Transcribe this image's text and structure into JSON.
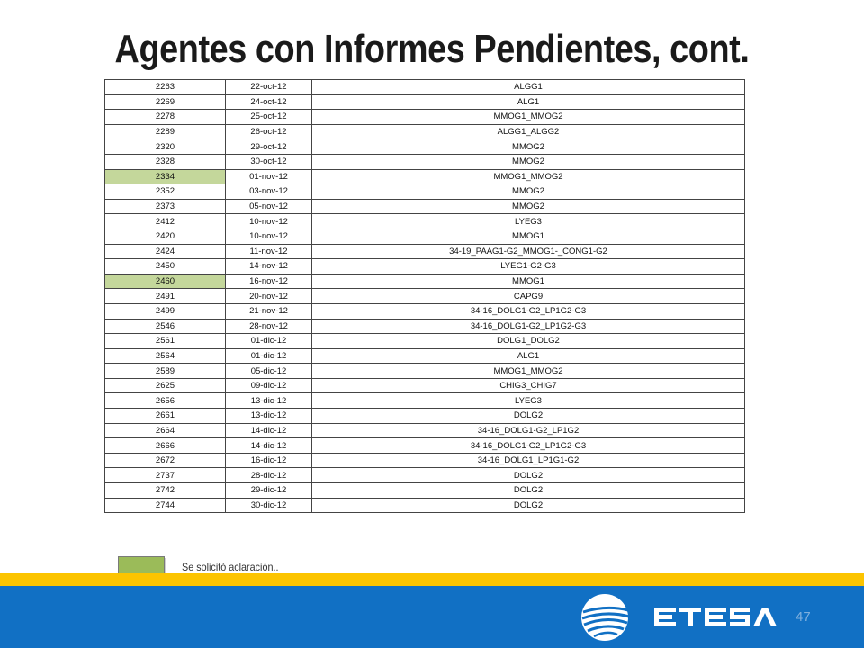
{
  "title": "Agentes con Informes Pendientes, cont.",
  "rows": [
    {
      "id": "2263",
      "date": "22-oct-12",
      "code": "ALGG1",
      "highlight": false
    },
    {
      "id": "2269",
      "date": "24-oct-12",
      "code": "ALG1",
      "highlight": false
    },
    {
      "id": "2278",
      "date": "25-oct-12",
      "code": "MMOG1_MMOG2",
      "highlight": false
    },
    {
      "id": "2289",
      "date": "26-oct-12",
      "code": "ALGG1_ALGG2",
      "highlight": false
    },
    {
      "id": "2320",
      "date": "29-oct-12",
      "code": "MMOG2",
      "highlight": false
    },
    {
      "id": "2328",
      "date": "30-oct-12",
      "code": "MMOG2",
      "highlight": false
    },
    {
      "id": "2334",
      "date": "01-nov-12",
      "code": "MMOG1_MMOG2",
      "highlight": true
    },
    {
      "id": "2352",
      "date": "03-nov-12",
      "code": "MMOG2",
      "highlight": false
    },
    {
      "id": "2373",
      "date": "05-nov-12",
      "code": "MMOG2",
      "highlight": false
    },
    {
      "id": "2412",
      "date": "10-nov-12",
      "code": "LYEG3",
      "highlight": false
    },
    {
      "id": "2420",
      "date": "10-nov-12",
      "code": "MMOG1",
      "highlight": false
    },
    {
      "id": "2424",
      "date": "11-nov-12",
      "code": "34-19_PAAG1-G2_MMOG1-_CONG1-G2",
      "highlight": false
    },
    {
      "id": "2450",
      "date": "14-nov-12",
      "code": "LYEG1-G2-G3",
      "highlight": false
    },
    {
      "id": "2460",
      "date": "16-nov-12",
      "code": "MMOG1",
      "highlight": true
    },
    {
      "id": "2491",
      "date": "20-nov-12",
      "code": "CAPG9",
      "highlight": false
    },
    {
      "id": "2499",
      "date": "21-nov-12",
      "code": "34-16_DOLG1-G2_LP1G2-G3",
      "highlight": false
    },
    {
      "id": "2546",
      "date": "28-nov-12",
      "code": "34-16_DOLG1-G2_LP1G2-G3",
      "highlight": false
    },
    {
      "id": "2561",
      "date": "01-dic-12",
      "code": "DOLG1_DOLG2",
      "highlight": false
    },
    {
      "id": "2564",
      "date": "01-dic-12",
      "code": "ALG1",
      "highlight": false
    },
    {
      "id": "2589",
      "date": "05-dic-12",
      "code": "MMOG1_MMOG2",
      "highlight": false
    },
    {
      "id": "2625",
      "date": "09-dic-12",
      "code": "CHIG3_CHIG7",
      "highlight": false
    },
    {
      "id": "2656",
      "date": "13-dic-12",
      "code": "LYEG3",
      "highlight": false
    },
    {
      "id": "2661",
      "date": "13-dic-12",
      "code": "DOLG2",
      "highlight": false
    },
    {
      "id": "2664",
      "date": "14-dic-12",
      "code": "34-16_DOLG1-G2_LP1G2",
      "highlight": false
    },
    {
      "id": "2666",
      "date": "14-dic-12",
      "code": "34-16_DOLG1-G2_LP1G2-G3",
      "highlight": false
    },
    {
      "id": "2672",
      "date": "16-dic-12",
      "code": "34-16_DOLG1_LP1G1-G2",
      "highlight": false
    },
    {
      "id": "2737",
      "date": "28-dic-12",
      "code": "DOLG2",
      "highlight": false
    },
    {
      "id": "2742",
      "date": "29-dic-12",
      "code": "DOLG2",
      "highlight": false
    },
    {
      "id": "2744",
      "date": "30-dic-12",
      "code": "DOLG2",
      "highlight": false
    }
  ],
  "legend": {
    "text": "Se solicitó aclaración..",
    "color": "#9bbb59"
  },
  "colors": {
    "highlight": "#c4d79b",
    "footer_yellow": "#fcc400",
    "footer_blue": "#1170c4"
  },
  "footer": {
    "logo_icon": "etesa-globe-icon",
    "logo_text": "ETESA",
    "page_number": "47"
  }
}
